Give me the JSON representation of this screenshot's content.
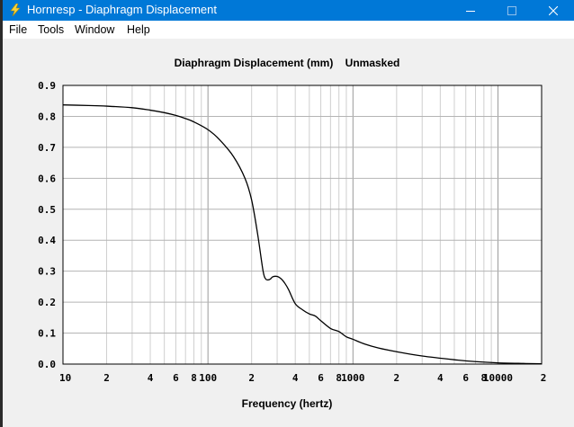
{
  "window": {
    "title": "Hornresp - Diaphragm Displacement",
    "title_bar_color": "#0078d7",
    "icon": "lightning-icon"
  },
  "menu": [
    "File",
    "Tools",
    "Window",
    "Help"
  ],
  "chart_data": {
    "type": "line",
    "title": "Diaphragm Displacement (mm)",
    "subtitle": "Unmasked",
    "xlabel": "Frequency (hertz)",
    "ylabel": "",
    "xscale": "log",
    "xlim": [
      10,
      20000
    ],
    "ylim": [
      0,
      0.9
    ],
    "grid": true,
    "x_tick_labels": [
      "10",
      "2",
      "4",
      "6",
      "8",
      "100",
      "2",
      "4",
      "6",
      "8",
      "1000",
      "2",
      "4",
      "6",
      "8",
      "10000",
      "2"
    ],
    "y_tick_labels": [
      "0.0",
      "0.1",
      "0.2",
      "0.3",
      "0.4",
      "0.5",
      "0.6",
      "0.7",
      "0.8",
      "0.9"
    ],
    "series": [
      {
        "color": "#000000",
        "x": [
          10,
          15,
          20,
          30,
          40,
          50,
          60,
          70,
          80,
          100,
          120,
          150,
          180,
          200,
          220,
          240,
          250,
          260,
          270,
          280,
          300,
          320,
          340,
          360,
          400,
          450,
          500,
          550,
          600,
          700,
          800,
          900,
          1000,
          1200,
          1500,
          2000,
          3000,
          5000,
          7000,
          10000,
          15000,
          20000
        ],
        "y": [
          0.837,
          0.835,
          0.833,
          0.828,
          0.82,
          0.812,
          0.803,
          0.793,
          0.782,
          0.757,
          0.725,
          0.67,
          0.6,
          0.53,
          0.42,
          0.3,
          0.275,
          0.272,
          0.275,
          0.282,
          0.283,
          0.275,
          0.26,
          0.24,
          0.195,
          0.175,
          0.162,
          0.155,
          0.14,
          0.115,
          0.105,
          0.088,
          0.08,
          0.065,
          0.052,
          0.04,
          0.026,
          0.014,
          0.008,
          0.004,
          0.002,
          0.001
        ]
      }
    ]
  }
}
